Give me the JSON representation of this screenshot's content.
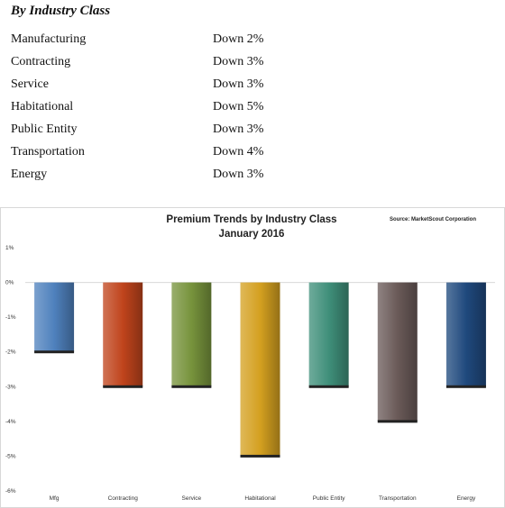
{
  "section": {
    "heading": "By Industry Class",
    "items": [
      {
        "label": "Manufacturing",
        "value": "Down 2%"
      },
      {
        "label": "Contracting",
        "value": "Down 3%"
      },
      {
        "label": "Service",
        "value": "Down 3%"
      },
      {
        "label": "Habitational",
        "value": "Down 5%"
      },
      {
        "label": "Public Entity",
        "value": "Down 3%"
      },
      {
        "label": "Transportation",
        "value": "Down 4%"
      },
      {
        "label": "Energy",
        "value": "Down 3%"
      }
    ]
  },
  "chart_data": {
    "type": "bar",
    "title": "Premium Trends by Industry Class",
    "subtitle": "January 2016",
    "source": "Source: MarketScout  Corporation",
    "categories": [
      "Mfg",
      "Contracting",
      "Service",
      "Habitational",
      "Public Entity",
      "Transportation",
      "Energy"
    ],
    "values": [
      -2,
      -3,
      -3,
      -5,
      -3,
      -4,
      -3
    ],
    "colors": [
      "#4f81bd",
      "#c0441c",
      "#77933c",
      "#d4a020",
      "#3f8f7a",
      "#6a5a58",
      "#1f497d"
    ],
    "ylim": [
      -6,
      1
    ],
    "yticks": [
      1,
      0,
      -1,
      -2,
      -3,
      -4,
      -5,
      -6
    ],
    "ytick_labels": [
      "1%",
      "0%",
      "-1%",
      "-2%",
      "-3%",
      "-4%",
      "-5%",
      "-6%"
    ],
    "grid": false,
    "legend": "none"
  }
}
